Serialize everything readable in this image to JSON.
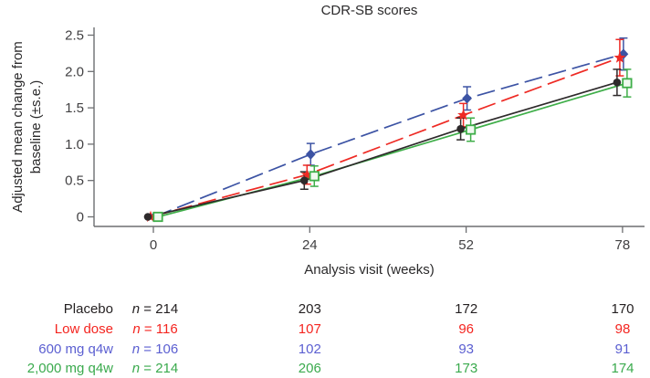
{
  "chart_data": {
    "type": "line",
    "title": "CDR-SB scores",
    "xlabel": "Analysis visit (weeks)",
    "ylabel_lines": [
      "Adjusted mean change from",
      "baseline (±s.e.)"
    ],
    "x_categories": [
      "0",
      "24",
      "52",
      "78"
    ],
    "y_ticks": [
      0,
      0.5,
      1.0,
      1.5,
      2.0,
      2.5
    ],
    "y_tick_labels": [
      "0",
      "0.5",
      "1.0",
      "1.5",
      "2.0",
      "2.5"
    ],
    "ylim": [
      0,
      2.5
    ],
    "grid": false,
    "legend_position": "none",
    "series": [
      {
        "name": "600 mg q4w",
        "color": "#3c53a4",
        "marker": "diamond",
        "line": "dashed",
        "values": [
          0,
          0.86,
          1.63,
          2.24
        ],
        "se": [
          0,
          0.15,
          0.16,
          0.22
        ]
      },
      {
        "name": "Low dose",
        "color": "#ee2a24",
        "marker": "star",
        "line": "dashed",
        "values": [
          0,
          0.58,
          1.4,
          2.19
        ],
        "se": [
          0,
          0.13,
          0.16,
          0.25
        ]
      },
      {
        "name": "2,000 mg q4w",
        "color": "#3fae49",
        "marker": "square",
        "line": "solid",
        "values": [
          0,
          0.56,
          1.2,
          1.84
        ],
        "se": [
          0,
          0.14,
          0.16,
          0.19
        ]
      },
      {
        "name": "Placebo",
        "color": "#2e2a2b",
        "marker": "circle",
        "line": "solid",
        "values": [
          0,
          0.5,
          1.21,
          1.85
        ],
        "se": [
          0,
          0.12,
          0.15,
          0.18
        ]
      }
    ]
  },
  "table": {
    "n_symbol": "n",
    "n_separator": " = ",
    "rows": [
      {
        "label": "Placebo",
        "color": "#231f20",
        "n": "214",
        "counts": [
          "203",
          "172",
          "170"
        ]
      },
      {
        "label": "Low dose",
        "color": "#f42520",
        "n": "116",
        "counts": [
          "107",
          "96",
          "98"
        ]
      },
      {
        "label": "600 mg q4w",
        "color": "#5b5fd1",
        "n": "106",
        "counts": [
          "102",
          "93",
          "91"
        ]
      },
      {
        "label": "2,000 mg q4w",
        "color": "#3aaa4d",
        "n": "214",
        "counts": [
          "206",
          "173",
          "174"
        ]
      }
    ]
  }
}
